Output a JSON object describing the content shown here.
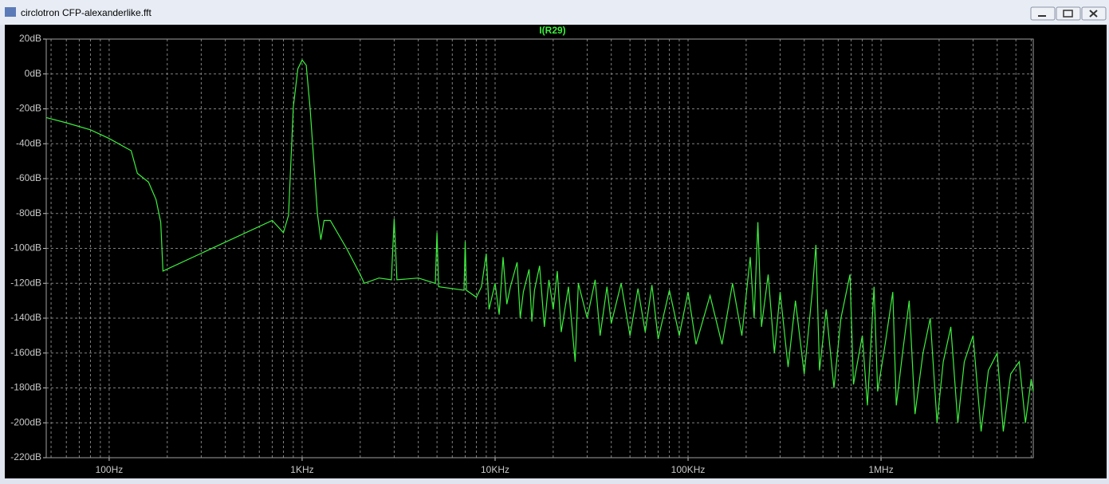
{
  "window": {
    "title": "circlotron CFP-alexanderlike.fft"
  },
  "chart_data": {
    "type": "line",
    "x": [
      47.2,
      60,
      80,
      100,
      130,
      140,
      160,
      175,
      185,
      190,
      700,
      800,
      850,
      900,
      950,
      1000,
      1050,
      1100,
      1150,
      1200,
      1250,
      1300,
      1400,
      1700,
      2000,
      2100,
      2500,
      2900,
      3000,
      3100,
      4000,
      4900,
      5000,
      5100,
      6900,
      7000,
      7100,
      8000,
      8500,
      9000,
      9300,
      10000,
      10500,
      11000,
      11500,
      12000,
      13000,
      13500,
      14000,
      15000,
      15500,
      16000,
      17000,
      18000,
      19000,
      20000,
      21000,
      22000,
      24000,
      26000,
      27000,
      30000,
      33000,
      35000,
      38000,
      40000,
      45000,
      50000,
      55000,
      60000,
      65000,
      70000,
      80000,
      90000,
      100000,
      110000,
      130000,
      150000,
      170000,
      190000,
      210000,
      220000,
      230000,
      240000,
      260000,
      280000,
      300000,
      330000,
      360000,
      400000,
      440000,
      460000,
      480000,
      520000,
      570000,
      620000,
      690000,
      720000,
      800000,
      850000,
      920000,
      960000,
      1050000,
      1150000,
      1200000,
      1300000,
      1400000,
      1500000,
      1650000,
      1800000,
      1950000,
      2100000,
      2300000,
      2500000,
      2700000,
      3000000,
      3300000,
      3600000,
      4000000,
      4300000,
      4700000,
      5200000,
      5600000,
      6000000,
      6150000
    ],
    "series": [
      {
        "name": "I(R29)",
        "color": "#3cf03c",
        "values": [
          -25,
          -28,
          -32,
          -37,
          -44,
          -57,
          -62,
          -72,
          -85,
          -113,
          -84,
          -91,
          -81,
          -19,
          3,
          8,
          5,
          -20,
          -50,
          -80,
          -95,
          -84,
          -84,
          -100,
          -115,
          -120,
          -117,
          -118,
          -83,
          -118,
          -117,
          -120,
          -91,
          -122,
          -124,
          -96,
          -124,
          -128,
          -122,
          -103,
          -135,
          -120,
          -138,
          -105,
          -132,
          -122,
          -108,
          -140,
          -125,
          -112,
          -142,
          -124,
          -110,
          -145,
          -118,
          -135,
          -113,
          -148,
          -122,
          -165,
          -120,
          -140,
          -118,
          -150,
          -122,
          -143,
          -120,
          -150,
          -123,
          -148,
          -121,
          -152,
          -124,
          -150,
          -125,
          -155,
          -127,
          -155,
          -120,
          -150,
          -105,
          -140,
          -85,
          -145,
          -115,
          -160,
          -125,
          -168,
          -130,
          -172,
          -125,
          -98,
          -170,
          -135,
          -180,
          -140,
          -115,
          -178,
          -150,
          -190,
          -122,
          -182,
          -155,
          -125,
          -190,
          -158,
          -130,
          -195,
          -160,
          -140,
          -200,
          -165,
          -145,
          -200,
          -165,
          -150,
          -205,
          -170,
          -160,
          -205,
          -172,
          -165,
          -200,
          -175,
          -182
        ]
      }
    ],
    "xlim": [
      47.2,
      6150000
    ],
    "ylim": [
      -220,
      20
    ],
    "log_x": true,
    "grid": true,
    "xticks": [
      {
        "value": 100,
        "label": "100Hz"
      },
      {
        "value": 1000,
        "label": "1KHz"
      },
      {
        "value": 10000,
        "label": "10KHz"
      },
      {
        "value": 100000,
        "label": "100KHz"
      },
      {
        "value": 1000000,
        "label": "1MHz"
      }
    ],
    "xminorticks": [
      50,
      60,
      70,
      80,
      90,
      200,
      300,
      400,
      500,
      600,
      700,
      800,
      900,
      2000,
      3000,
      4000,
      5000,
      6000,
      7000,
      8000,
      9000,
      20000,
      30000,
      40000,
      50000,
      60000,
      70000,
      80000,
      90000,
      200000,
      300000,
      400000,
      500000,
      600000,
      700000,
      800000,
      900000,
      2000000,
      3000000,
      4000000,
      5000000,
      6000000
    ],
    "yticks": [
      {
        "value": 20,
        "label": "20dB"
      },
      {
        "value": 0,
        "label": "0dB"
      },
      {
        "value": -20,
        "label": "-20dB"
      },
      {
        "value": -40,
        "label": "-40dB"
      },
      {
        "value": -60,
        "label": "-60dB"
      },
      {
        "value": -80,
        "label": "-80dB"
      },
      {
        "value": -100,
        "label": "-100dB"
      },
      {
        "value": -120,
        "label": "-120dB"
      },
      {
        "value": -140,
        "label": "-140dB"
      },
      {
        "value": -160,
        "label": "-160dB"
      },
      {
        "value": -180,
        "label": "-180dB"
      },
      {
        "value": -200,
        "label": "-200dB"
      },
      {
        "value": -220,
        "label": "-220dB"
      }
    ]
  }
}
